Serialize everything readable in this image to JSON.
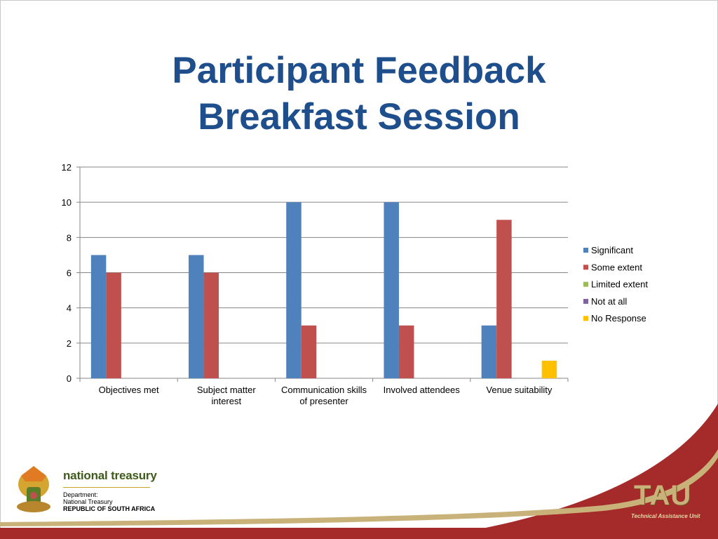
{
  "title": {
    "line1": "Participant Feedback",
    "line2": "Breakfast Session"
  },
  "colors": {
    "title": "#1f4e8c",
    "Significant": "#4f81bd",
    "Some extent": "#c0504d",
    "Limited extent": "#9bbb59",
    "Not at all": "#8064a2",
    "No Response": "#ffc000",
    "footer_red": "#a52a2a",
    "footer_gold": "#c9b27a"
  },
  "chart_data": {
    "type": "bar",
    "title": "",
    "xlabel": "",
    "ylabel": "",
    "ylim": [
      0,
      12
    ],
    "yticks": [
      0,
      2,
      4,
      6,
      8,
      10,
      12
    ],
    "grid": true,
    "legend_position": "right",
    "categories": [
      [
        "Objectives met"
      ],
      [
        "Subject matter",
        "interest"
      ],
      [
        "Communication skills",
        "of presenter"
      ],
      [
        "Involved attendees"
      ],
      [
        "Venue suitability"
      ]
    ],
    "series": [
      {
        "name": "Significant",
        "values": [
          7,
          7,
          10,
          10,
          3
        ]
      },
      {
        "name": "Some extent",
        "values": [
          6,
          6,
          3,
          3,
          9
        ]
      },
      {
        "name": "Limited extent",
        "values": [
          0,
          0,
          0,
          0,
          0
        ]
      },
      {
        "name": "Not at all",
        "values": [
          0,
          0,
          0,
          0,
          0
        ]
      },
      {
        "name": "No Response",
        "values": [
          0,
          0,
          0,
          0,
          1
        ]
      }
    ]
  },
  "footer": {
    "logo_title": "national treasury",
    "logo_line1": "Department:",
    "logo_line2": "National Treasury",
    "logo_line3": "REPUBLIC OF SOUTH AFRICA",
    "tau_title": "TAU",
    "tau_subtitle": "Technical Assistance Unit"
  }
}
